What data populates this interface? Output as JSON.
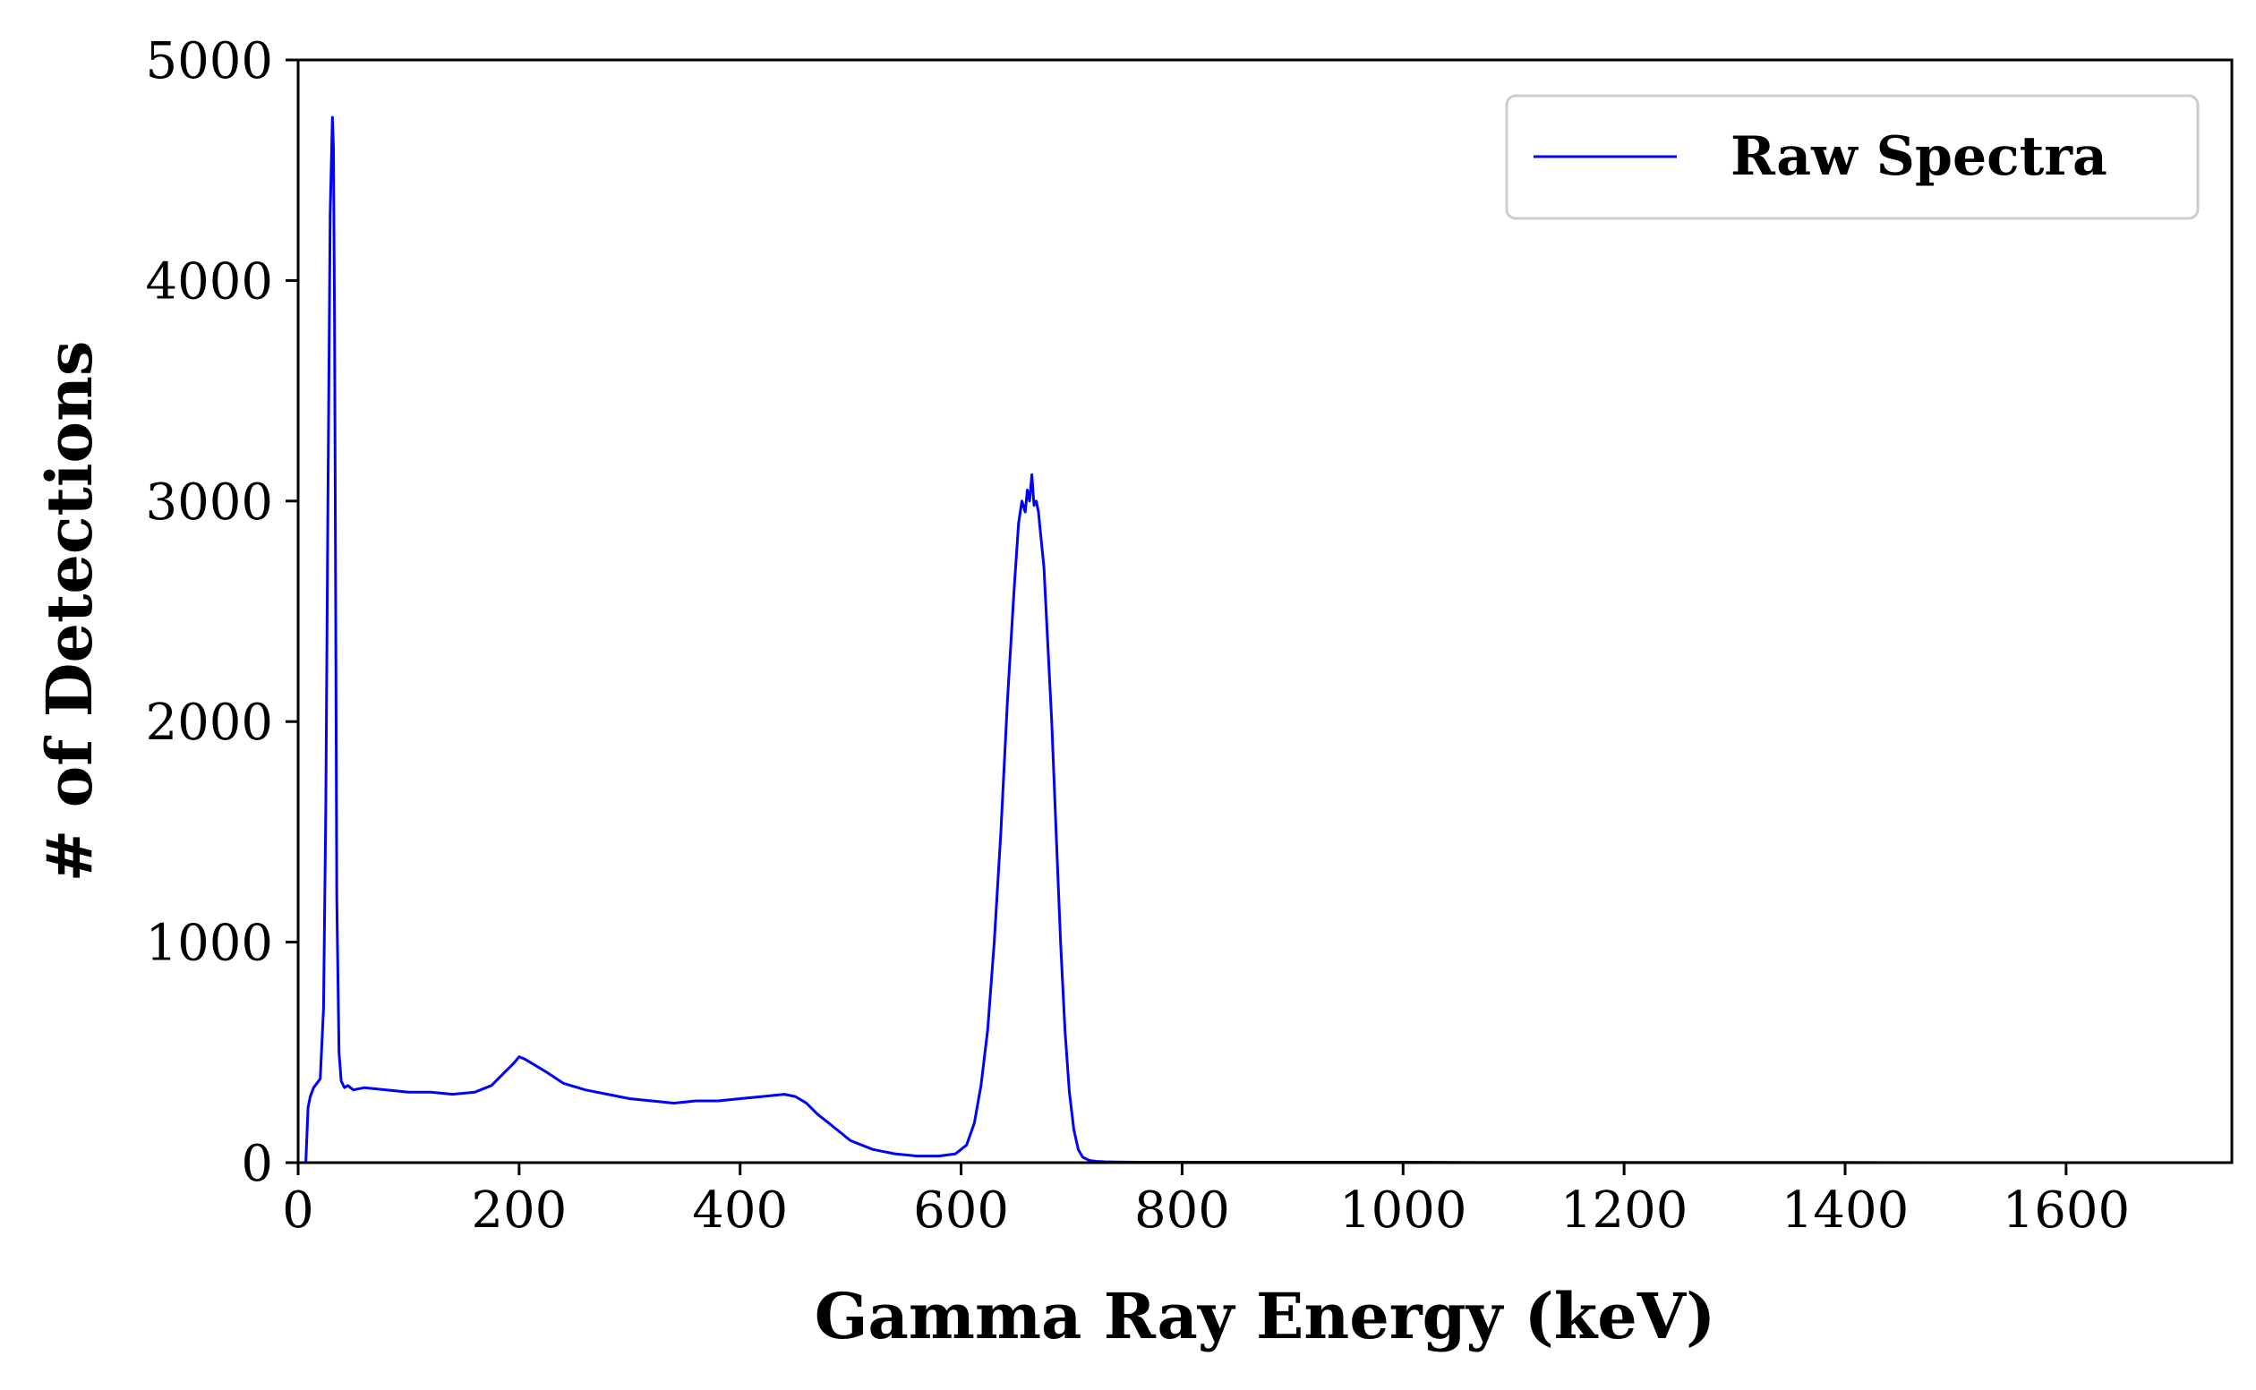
{
  "chart_data": {
    "type": "line",
    "title": "",
    "xlabel": "Gamma Ray Energy (keV)",
    "ylabel": "# of Detections",
    "xlim": [
      0,
      1750
    ],
    "ylim": [
      0,
      5000
    ],
    "xticks": [
      0,
      200,
      400,
      600,
      800,
      1000,
      1200,
      1400,
      1600
    ],
    "yticks": [
      0,
      1000,
      2000,
      3000,
      4000,
      5000
    ],
    "xtick_labels": [
      "0",
      "200",
      "400",
      "600",
      "800",
      "1000",
      "1200",
      "1400",
      "1600"
    ],
    "ytick_labels": [
      "0",
      "1000",
      "2000",
      "3000",
      "4000",
      "5000"
    ],
    "grid": false,
    "legend": {
      "placement": "top-right",
      "entries": [
        "Raw Spectra"
      ]
    },
    "series": [
      {
        "name": "Raw Spectra",
        "color": "#0000ff",
        "x": [
          7,
          9,
          11,
          14,
          17,
          20,
          23,
          25,
          27,
          29,
          31,
          32,
          33,
          34,
          35,
          37,
          39,
          42,
          45,
          50,
          60,
          80,
          100,
          120,
          140,
          160,
          175,
          185,
          195,
          200,
          205,
          215,
          225,
          240,
          260,
          280,
          300,
          320,
          340,
          360,
          380,
          400,
          420,
          440,
          450,
          460,
          470,
          480,
          490,
          500,
          520,
          540,
          560,
          580,
          595,
          605,
          612,
          618,
          624,
          630,
          636,
          642,
          648,
          652,
          655,
          658,
          660,
          662,
          664,
          666,
          668,
          670,
          672,
          675,
          678,
          682,
          686,
          690,
          694,
          698,
          702,
          706,
          710,
          716,
          722,
          730,
          740,
          760,
          800,
          900,
          1000,
          1100,
          1200,
          1300,
          1400,
          1500,
          1600,
          1700,
          1750
        ],
        "y": [
          0,
          250,
          300,
          340,
          360,
          380,
          700,
          1600,
          3000,
          4300,
          4740,
          4600,
          3800,
          2500,
          1200,
          500,
          370,
          340,
          350,
          330,
          340,
          330,
          320,
          320,
          310,
          320,
          350,
          400,
          450,
          480,
          470,
          440,
          410,
          360,
          330,
          310,
          290,
          280,
          270,
          280,
          280,
          290,
          300,
          310,
          300,
          270,
          220,
          180,
          140,
          100,
          60,
          40,
          30,
          30,
          40,
          80,
          180,
          350,
          600,
          1000,
          1500,
          2100,
          2600,
          2900,
          3000,
          2950,
          3050,
          3000,
          3120,
          2980,
          3000,
          2950,
          2850,
          2700,
          2400,
          2000,
          1500,
          1000,
          600,
          320,
          150,
          60,
          25,
          10,
          6,
          4,
          3,
          2,
          2,
          2,
          2,
          1,
          1,
          1,
          1,
          0,
          0,
          0,
          0
        ]
      }
    ]
  }
}
